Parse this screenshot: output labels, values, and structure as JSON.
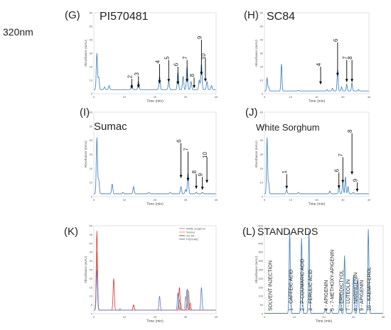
{
  "figure": {
    "wavelength_label": "320nm"
  },
  "colors": {
    "trace": "#4a86c0",
    "arrow": "#000000",
    "axis": "#888888",
    "red": "#e03030",
    "grey": "#9a9aa6",
    "orange": "#e8a070",
    "blue": "#5a7cc0"
  },
  "chart_data": [
    {
      "id": "G",
      "panel_label": "(G)",
      "title": "PI570481",
      "type": "line",
      "xlabel": "Time (min)",
      "ylabel": "Absorbance (mAU)",
      "xlim": [
        0,
        40
      ],
      "ylim": [
        0,
        60
      ],
      "x_ticks": [
        "0",
        "10",
        "20",
        "30",
        "40"
      ],
      "y_ticks": [
        "0",
        "10",
        "20",
        "30",
        "40",
        "50",
        "60"
      ],
      "peaks": [
        [
          1,
          30
        ],
        [
          1.6,
          12
        ],
        [
          3.5,
          5
        ],
        [
          5,
          6
        ],
        [
          12.4,
          7
        ],
        [
          14.6,
          9
        ],
        [
          21.5,
          13
        ],
        [
          24.5,
          9
        ],
        [
          27.5,
          16
        ],
        [
          29.2,
          13
        ],
        [
          30.5,
          20
        ],
        [
          31.8,
          9
        ],
        [
          34.5,
          10
        ],
        [
          35.2,
          22
        ],
        [
          37,
          9
        ],
        [
          38.5,
          6
        ]
      ],
      "baseline": 3,
      "annotations": [
        {
          "text": "2",
          "x": 12.4,
          "y": 11
        },
        {
          "text": "3",
          "x": 14.6,
          "y": 13
        },
        {
          "text": "4",
          "x": 21.5,
          "y": 22
        },
        {
          "text": "5",
          "x": 24.5,
          "y": 25
        },
        {
          "text": "6",
          "x": 27.5,
          "y": 20
        },
        {
          "text": "7",
          "x": 30.5,
          "y": 25
        },
        {
          "text": "8",
          "x": 32.8,
          "y": 12
        },
        {
          "text": "9",
          "x": 35.2,
          "y": 40
        },
        {
          "text": "10",
          "x": 36.5,
          "y": 26
        }
      ]
    },
    {
      "id": "H",
      "panel_label": "(H)",
      "title": "SC84",
      "type": "line",
      "xlabel": "Time (min)",
      "ylabel": "Absorbance (mAU)",
      "xlim": [
        0,
        40
      ],
      "ylim": [
        0,
        60
      ],
      "x_ticks": [
        "0",
        "10",
        "20",
        "30",
        "40"
      ],
      "y_ticks": [
        "0",
        "10",
        "20",
        "30",
        "40",
        "50",
        "60"
      ],
      "peaks": [
        [
          1,
          12
        ],
        [
          1.6,
          5
        ],
        [
          6.5,
          22
        ],
        [
          13,
          2.5
        ],
        [
          20,
          2
        ],
        [
          21.5,
          2
        ],
        [
          24,
          3
        ],
        [
          26,
          4
        ],
        [
          28,
          18
        ],
        [
          29.5,
          5
        ],
        [
          31.5,
          7
        ],
        [
          33.5,
          8
        ],
        [
          36,
          3
        ]
      ],
      "baseline": 2,
      "annotations": [
        {
          "text": "4",
          "x": 21.5,
          "y": 20
        },
        {
          "text": "6",
          "x": 28,
          "y": 38
        },
        {
          "text": "7",
          "x": 31.5,
          "y": 25
        },
        {
          "text": "8",
          "x": 33.5,
          "y": 25
        }
      ]
    },
    {
      "id": "I",
      "panel_label": "(I)",
      "title": "Sumac",
      "type": "line",
      "xlabel": "Time (min)",
      "ylabel": "Absorbance (mAU)",
      "xlim": [
        0,
        40
      ],
      "ylim": [
        0,
        60
      ],
      "x_ticks": [
        "0",
        "10",
        "20",
        "30",
        "40"
      ],
      "y_ticks": [
        "0",
        "10",
        "20",
        "30",
        "40",
        "50",
        "60"
      ],
      "peaks": [
        [
          1,
          42
        ],
        [
          1.6,
          12
        ],
        [
          6,
          9
        ],
        [
          9.5,
          3
        ],
        [
          13,
          7
        ],
        [
          18,
          3
        ],
        [
          21.5,
          2
        ],
        [
          25,
          3
        ],
        [
          28.5,
          7
        ],
        [
          30,
          5
        ],
        [
          30.8,
          17
        ],
        [
          33.5,
          3
        ],
        [
          35.5,
          3
        ]
      ],
      "baseline": 2,
      "annotations": [
        {
          "text": "6",
          "x": 28.5,
          "y": 38
        },
        {
          "text": "7",
          "x": 30.8,
          "y": 32
        },
        {
          "text": "8",
          "x": 33.5,
          "y": 16
        },
        {
          "text": "9",
          "x": 35.5,
          "y": 14
        },
        {
          "text": "10",
          "x": 37,
          "y": 28
        }
      ]
    },
    {
      "id": "J",
      "panel_label": "(J)",
      "title": "White Sorghum",
      "type": "line",
      "xlabel": "Time (min)",
      "ylabel": "Absorbance (mAU)",
      "xlim": [
        0,
        40
      ],
      "ylim": [
        0,
        60
      ],
      "x_ticks": [
        "0",
        "10",
        "20",
        "30",
        "40"
      ],
      "y_ticks": [
        "0",
        "10",
        "20",
        "30",
        "40",
        "50",
        "60"
      ],
      "peaks": [
        [
          1,
          42
        ],
        [
          1.6,
          10
        ],
        [
          8.5,
          5
        ],
        [
          13,
          3
        ],
        [
          20,
          2
        ],
        [
          25,
          4
        ],
        [
          28.5,
          8
        ],
        [
          30,
          11
        ],
        [
          31,
          14
        ],
        [
          32,
          7
        ],
        [
          34,
          3
        ],
        [
          36,
          2
        ]
      ],
      "baseline": 2,
      "annotations": [
        {
          "text": "1",
          "x": 8.5,
          "y": 16
        },
        {
          "text": "6",
          "x": 28.5,
          "y": 17
        },
        {
          "text": "7",
          "x": 30,
          "y": 28
        },
        {
          "text": "8",
          "x": 33.5,
          "y": 45
        },
        {
          "text": "9",
          "x": 35.5,
          "y": 10
        }
      ]
    },
    {
      "id": "K",
      "panel_label": "(K)",
      "title": "",
      "type": "line",
      "xlabel": "Time (min)",
      "ylabel": "Absorbance (mAU)",
      "xlim": [
        0,
        40
      ],
      "ylim": [
        0,
        50
      ],
      "x_ticks": [
        "0",
        "10",
        "20",
        "30",
        "40"
      ],
      "y_ticks": [
        "0",
        "5",
        "10",
        "15",
        "20",
        "25",
        "30",
        "35",
        "40",
        "45",
        "50"
      ],
      "legend": [
        "White sorghum",
        "Sumac",
        "SC-84",
        "PI570481"
      ],
      "legend_position": "top-right",
      "series": [
        {
          "name": "White sorghum",
          "color": "#9a9aa6",
          "peaks": [
            [
              1,
              30
            ],
            [
              8.5,
              3
            ],
            [
              28,
              8
            ],
            [
              30,
              10
            ],
            [
              31,
              13
            ]
          ],
          "baseline": 2
        },
        {
          "name": "Sumac",
          "color": "#e8a070",
          "peaks": [
            [
              1,
              35
            ],
            [
              13,
              5
            ],
            [
              28.5,
              6
            ],
            [
              30.8,
              14
            ]
          ],
          "baseline": 2
        },
        {
          "name": "SC-84",
          "color": "#e03030",
          "peaks": [
            [
              1,
              47
            ],
            [
              6.5,
              20
            ],
            [
              13,
              5
            ],
            [
              28,
              15
            ],
            [
              31.5,
              6
            ]
          ],
          "baseline": 2
        },
        {
          "name": "PI570481",
          "color": "#5a7cc0",
          "peaks": [
            [
              1,
              25
            ],
            [
              21.5,
              10
            ],
            [
              27.5,
              12
            ],
            [
              30.5,
              14
            ],
            [
              35.2,
              15
            ]
          ],
          "baseline": 2
        }
      ]
    },
    {
      "id": "L",
      "panel_label": "(L)",
      "title": "STANDARDS",
      "type": "line",
      "xlabel": "Time (min)",
      "ylabel": "Absorbance (mAU)",
      "xlim": [
        0,
        40
      ],
      "ylim": [
        0,
        500
      ],
      "x_ticks": [
        "0",
        "10",
        "20",
        "30",
        "40"
      ],
      "y_ticks": [
        "0",
        "50",
        "100",
        "150",
        "200",
        "250",
        "300",
        "350",
        "400",
        "450",
        "500"
      ],
      "peaks": [
        [
          8.5,
          470
        ],
        [
          12.5,
          430
        ],
        [
          15,
          470
        ],
        [
          20.5,
          30
        ],
        [
          22.5,
          20
        ],
        [
          25.5,
          120
        ],
        [
          27,
          330
        ],
        [
          30,
          220
        ],
        [
          31.5,
          200
        ],
        [
          35,
          480
        ]
      ],
      "baseline": 2,
      "vertical_labels": [
        {
          "text": "SOLVENT INJECTION",
          "x": 2.5
        },
        {
          "text": "1 - CAFFEIC ACID",
          "x": 9.5
        },
        {
          "text": "2 - P-COUMARIC ACID",
          "x": 13.3
        },
        {
          "text": "3 - FERULIC ACID",
          "x": 16
        },
        {
          "text": "4 - APIGENIN",
          "x": 21.3
        },
        {
          "text": "5 - 7-METHOXY-APIGENIN",
          "x": 23.3
        },
        {
          "text": "6 - ERIODICTYOL",
          "x": 26.5
        },
        {
          "text": "7 - LUTEOLIN",
          "x": 28.7
        },
        {
          "text": "8 - NARINGENIN",
          "x": 31.3
        },
        {
          "text": "9 - APIGENIN",
          "x": 33.3
        },
        {
          "text": "10 - KAEMPFEROL",
          "x": 35.8
        }
      ]
    }
  ]
}
